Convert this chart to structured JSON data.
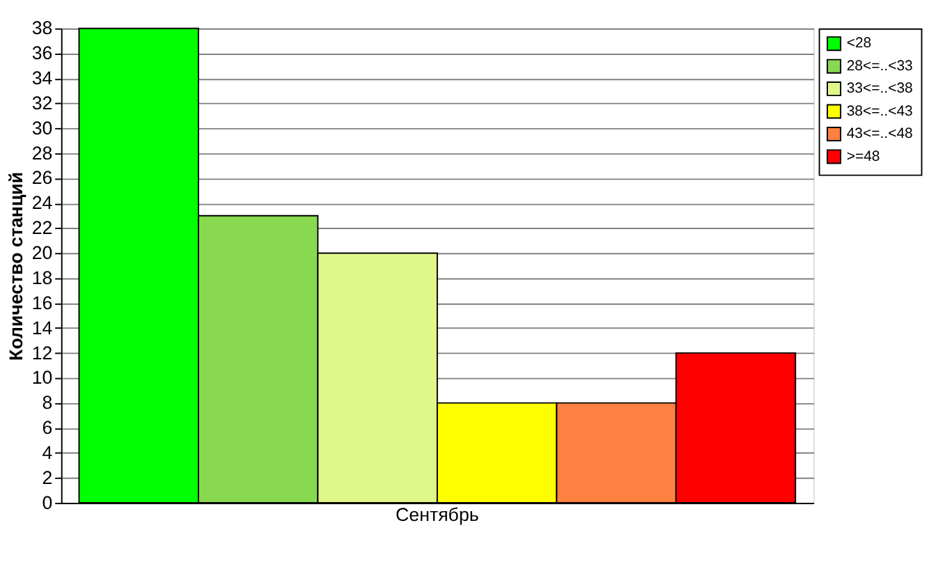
{
  "chart_data": {
    "type": "bar",
    "ylabel": "Количество станций",
    "categories": [
      "Сентябрь"
    ],
    "series": [
      {
        "name": "<28",
        "color": "#00ff00",
        "values": [
          38
        ]
      },
      {
        "name": "28<=..<33",
        "color": "#88d850",
        "values": [
          23
        ]
      },
      {
        "name": "33<=..<38",
        "color": "#e0f88a",
        "values": [
          20
        ]
      },
      {
        "name": "38<=..<43",
        "color": "#ffff00",
        "values": [
          8
        ]
      },
      {
        "name": "43<=..<48",
        "color": "#ff8040",
        "values": [
          8
        ]
      },
      {
        "name": ">=48",
        "color": "#ff0000",
        "values": [
          12
        ]
      }
    ],
    "ylim": [
      0,
      38
    ],
    "yticks": [
      0,
      2,
      4,
      6,
      8,
      10,
      12,
      14,
      16,
      18,
      20,
      22,
      24,
      26,
      28,
      30,
      32,
      34,
      36,
      38
    ],
    "grid": "y",
    "legend": "top right"
  }
}
